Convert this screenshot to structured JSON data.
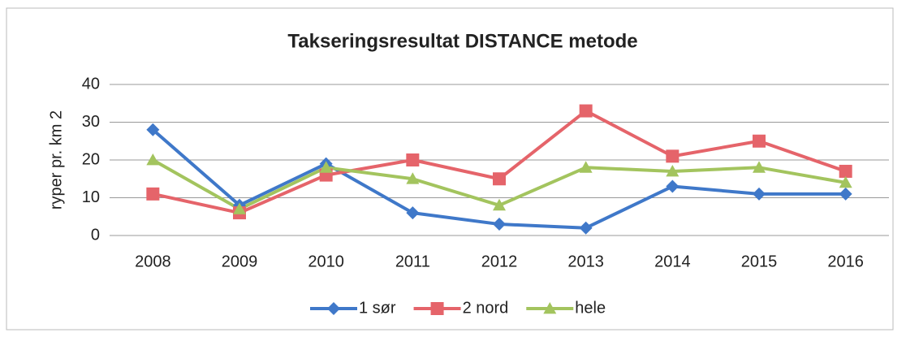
{
  "chart_data": {
    "type": "line",
    "title": "Takseringsresultat DISTANCE metode",
    "y_label": "ryper pr. km 2",
    "categories": [
      "2008",
      "2009",
      "2010",
      "2011",
      "2012",
      "2013",
      "2014",
      "2015",
      "2016"
    ],
    "series": [
      {
        "name": "1 sør",
        "color": "#3f78c9",
        "marker": "diamond",
        "values": [
          28,
          8,
          19,
          6,
          3,
          2,
          13,
          11,
          11
        ]
      },
      {
        "name": "2 nord",
        "color": "#e5646a",
        "marker": "square",
        "values": [
          11,
          6,
          16,
          20,
          15,
          33,
          21,
          25,
          17
        ]
      },
      {
        "name": "hele",
        "color": "#a3c45e",
        "marker": "triangle",
        "values": [
          20,
          7,
          18,
          15,
          8,
          18,
          17,
          18,
          14
        ]
      }
    ],
    "ylim": [
      0,
      40
    ],
    "yticks": [
      0,
      10,
      20,
      30,
      40
    ],
    "grid": true,
    "legend": "bottom"
  }
}
